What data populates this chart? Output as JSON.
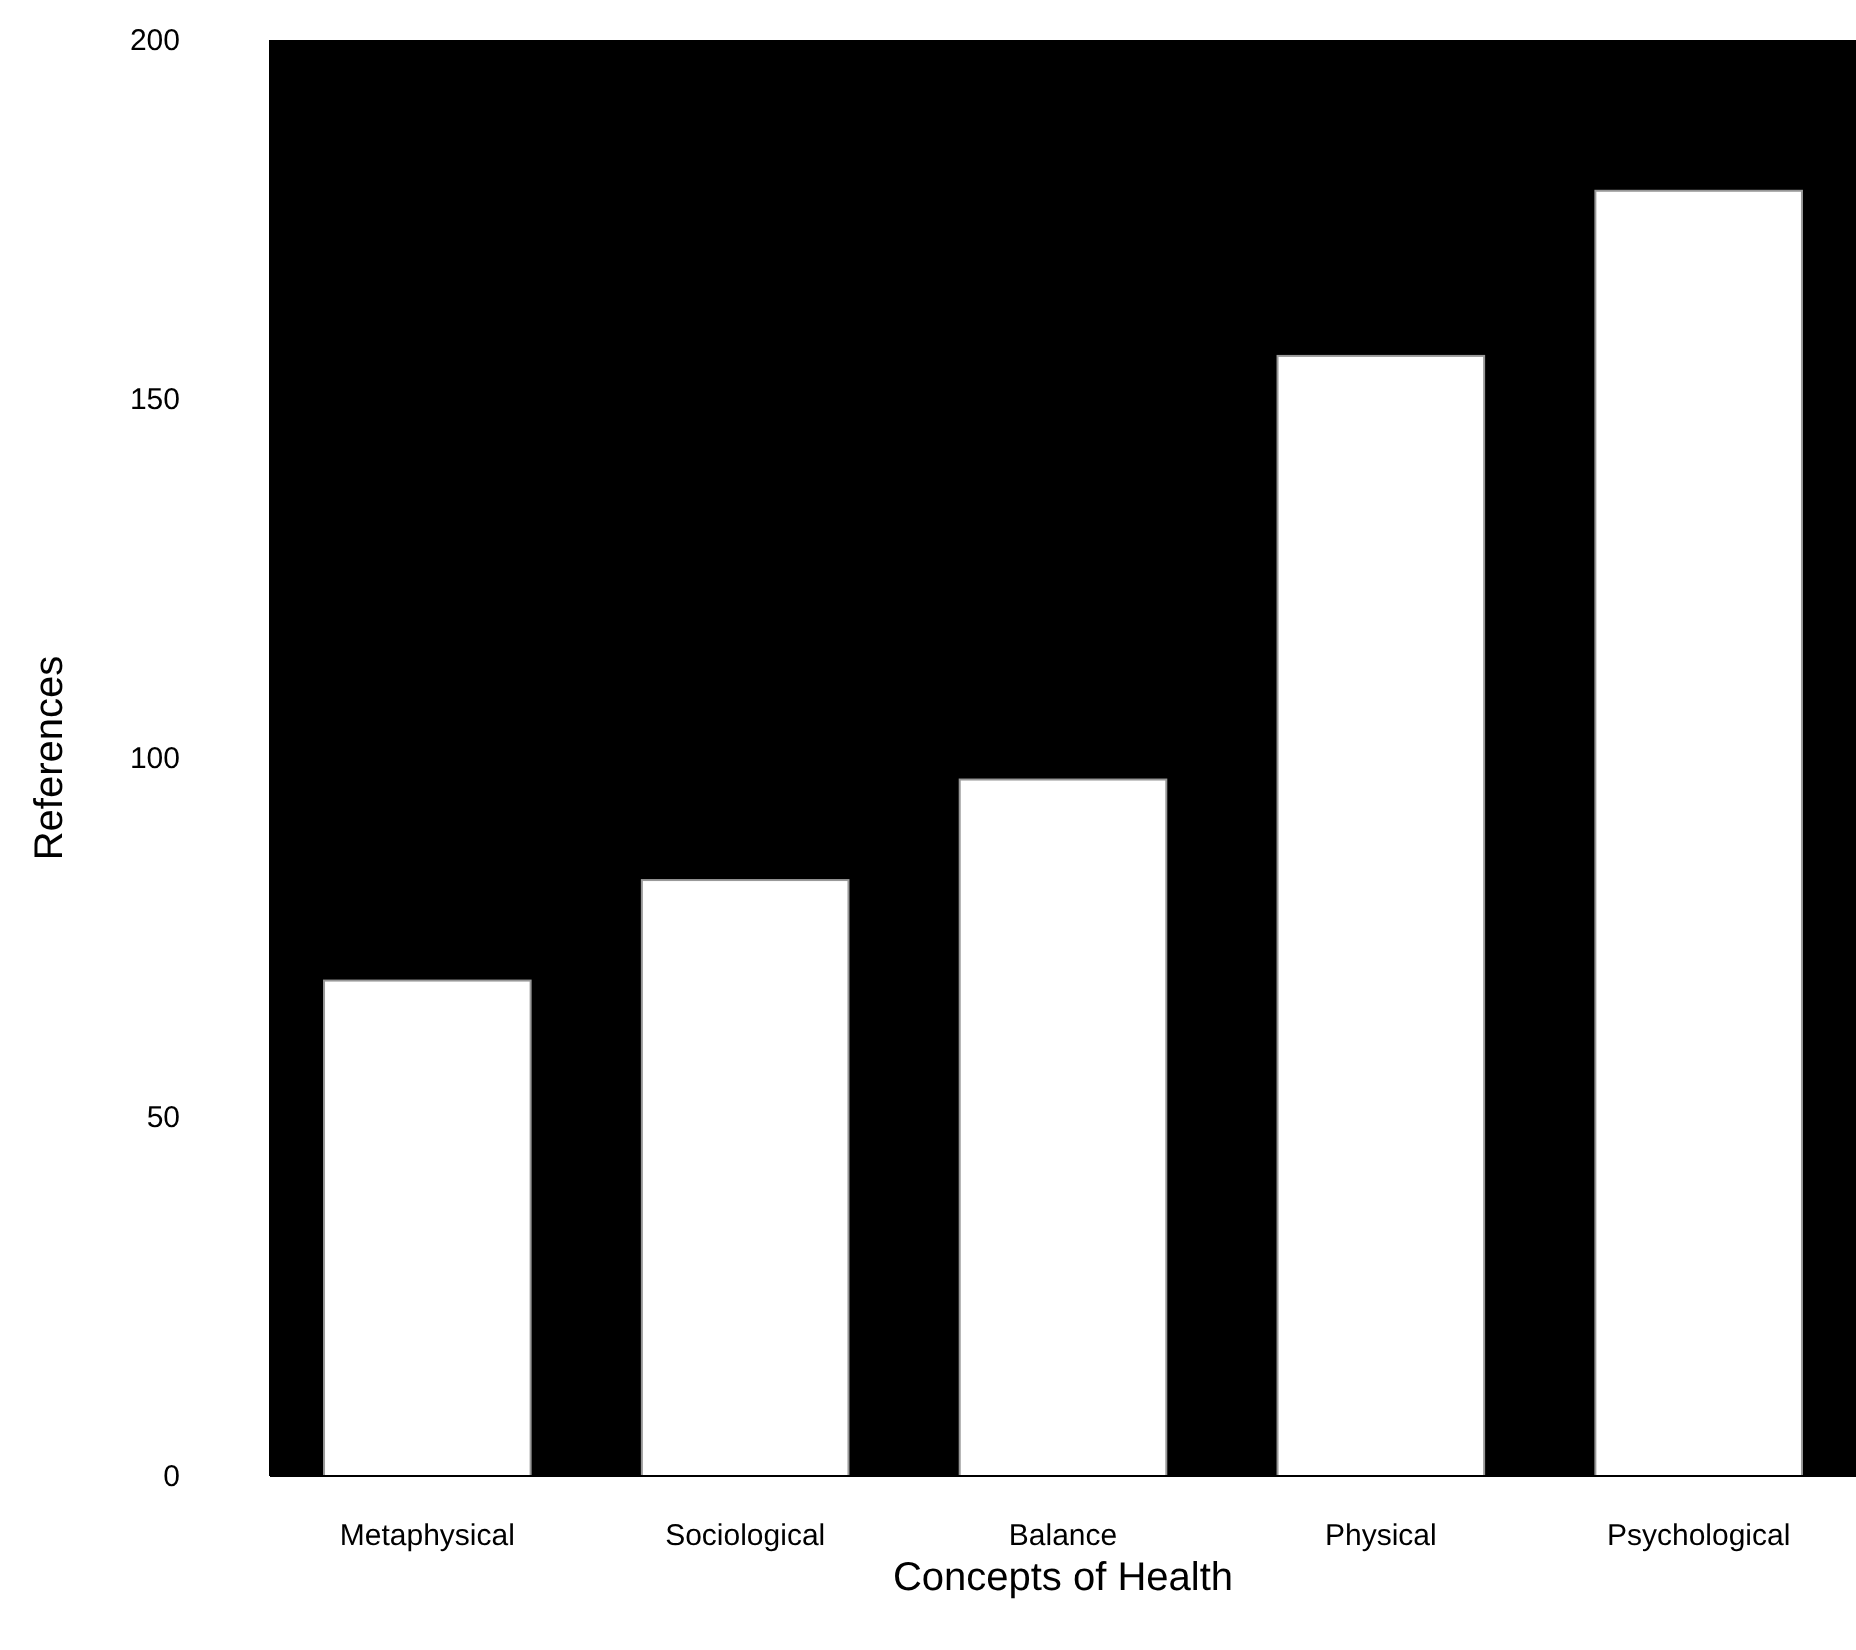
{
  "chart_data": {
    "type": "bar",
    "xlabel": "Concepts of Health",
    "ylabel": "References",
    "categories": [
      "Metaphysical",
      "Sociological",
      "Balance",
      "Physical",
      "Psychological"
    ],
    "values": [
      69,
      83,
      97,
      156,
      179
    ],
    "color": "#ffffff",
    "ylim": [
      0,
      200
    ],
    "yticks": [
      0,
      50,
      100,
      150,
      200
    ],
    "grid": false
  }
}
